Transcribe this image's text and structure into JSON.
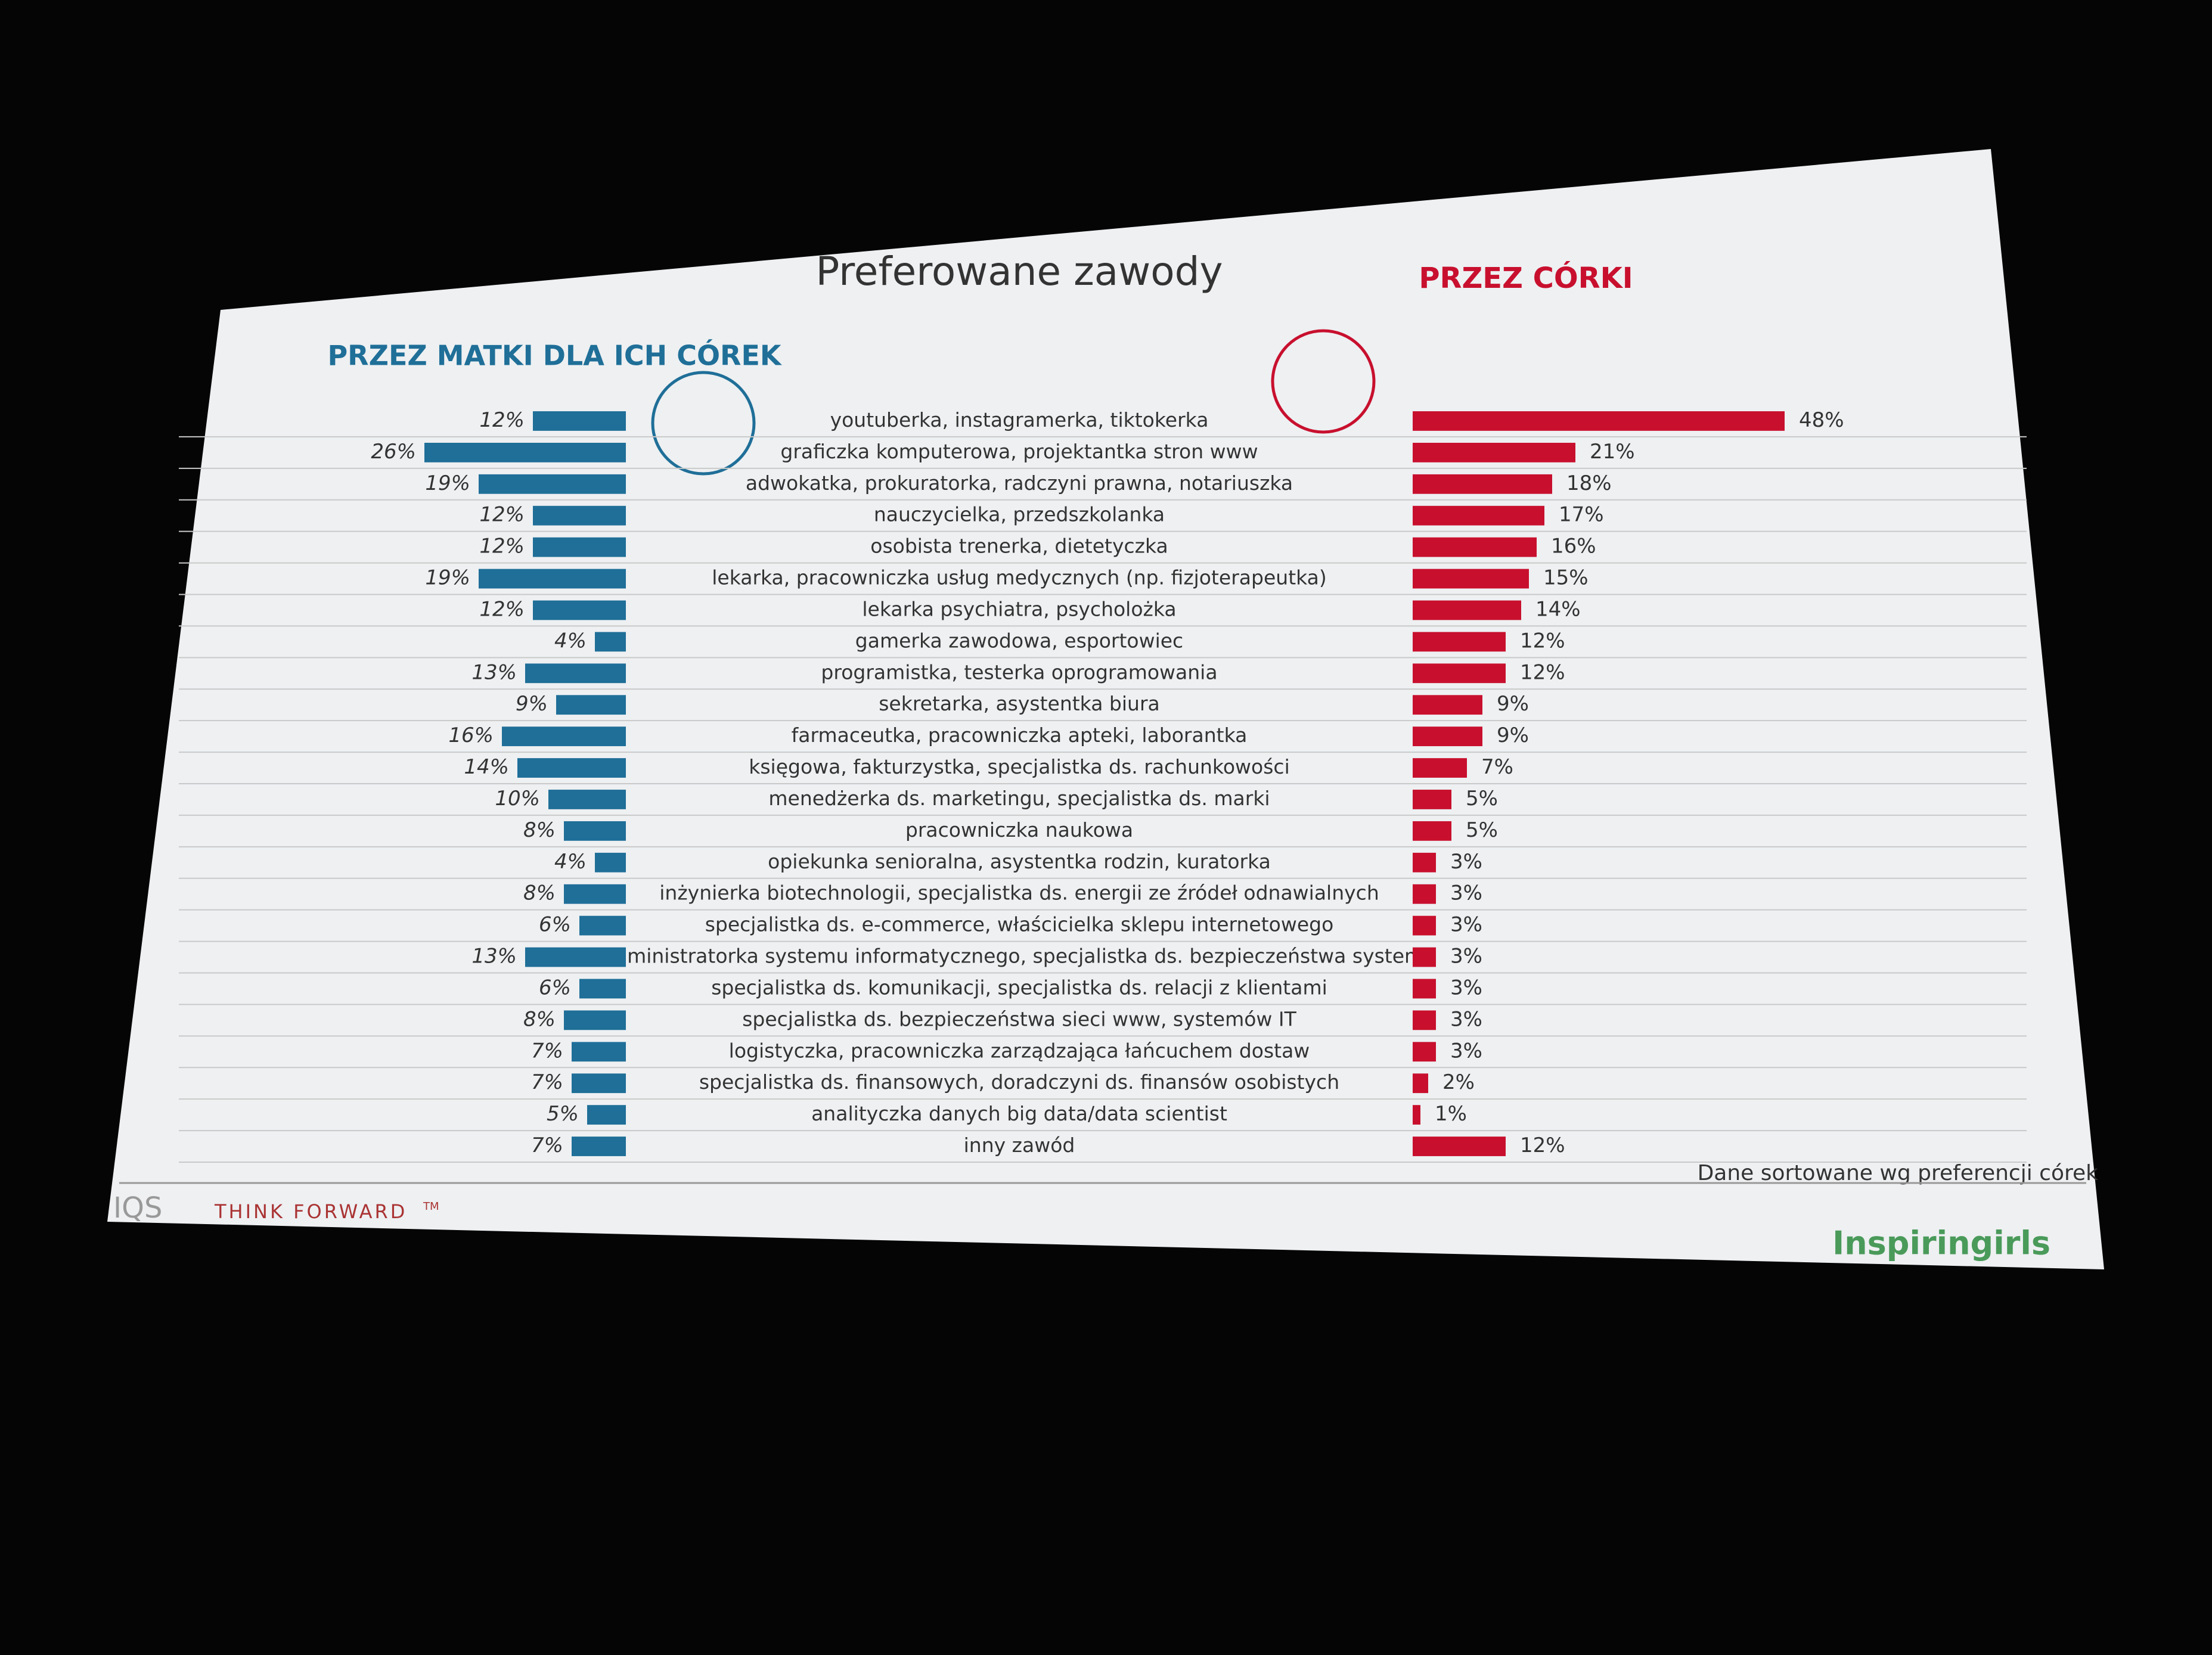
{
  "chart_data": {
    "type": "bar",
    "title": "Preferowane zawody",
    "left_heading": "PRZEZ MATKI DLA ICH CÓREK",
    "right_heading": "PRZEZ CÓRKI",
    "note": "Dane sortowane wg preferencji córek",
    "footer_left": "THINK FORWARD",
    "footer_tm": "TM",
    "footer_logo_left": "IQS",
    "footer_logo_right": "Inspiringirls",
    "categories": [
      "youtuberka, instagramerka, tiktokerka",
      "graficzka komputerowa, projektantka stron www",
      "adwokatka, prokuratorka, radczyni prawna, notariuszka",
      "nauczycielka, przedszkolanka",
      "osobista trenerka, dietetyczka",
      "lekarka, pracowniczka usług medycznych (np. fizjoterapeutka)",
      "lekarka psychiatra, psycholożka",
      "gamerka zawodowa, esportowiec",
      "programistka, testerka oprogramowania",
      "sekretarka, asystentka biura",
      "farmaceutka, pracowniczka apteki, laborantka",
      "księgowa, fakturzystka, specjalistka ds. rachunkowości",
      "menedżerka ds. marketingu, specjalistka ds. marki",
      "pracowniczka naukowa",
      "opiekunka senioralna, asystentka rodzin, kuratorka",
      "inżynierka biotechnologii, specjalistka ds. energii ze źródeł odnawialnych",
      "specjalistka ds. e-commerce, właścicielka sklepu internetowego",
      "administratorka systemu informatycznego, specjalistka ds. bezpieczeństwa systemu",
      "specjalistka ds. komunikacji, specjalistka ds. relacji z klientami",
      "specjalistka ds. bezpieczeństwa sieci www, systemów IT",
      "logistyczka, pracowniczka zarządzająca łańcuchem dostaw",
      "specjalistka ds. finansowych, doradczyni ds. finansów osobistych",
      "analityczka danych big data/data scientist",
      "inny zawód"
    ],
    "series": [
      {
        "name": "PRZEZ MATKI DLA ICH CÓREK",
        "color": "#1f6f98",
        "values": [
          12,
          26,
          19,
          12,
          12,
          19,
          12,
          4,
          13,
          9,
          16,
          14,
          10,
          8,
          4,
          8,
          6,
          13,
          6,
          8,
          7,
          7,
          5,
          7
        ],
        "value_labels": [
          "12%",
          "26%",
          "19%",
          "12%",
          "12%",
          "19%",
          "12%",
          "4%",
          "13%",
          "9%",
          "16%",
          "14%",
          "10%",
          "8%",
          "4%",
          "8%",
          "6%",
          "13%",
          "6%",
          "8%",
          "7%",
          "7%",
          "5%",
          "7%"
        ]
      },
      {
        "name": "PRZEZ CÓRKI",
        "color": "#c8102e",
        "values": [
          48,
          21,
          18,
          17,
          16,
          15,
          14,
          12,
          12,
          9,
          9,
          7,
          5,
          5,
          3,
          3,
          3,
          3,
          3,
          3,
          3,
          2,
          1,
          12
        ],
        "value_labels": [
          "48%",
          "21%",
          "18%",
          "17%",
          "16%",
          "15%",
          "14%",
          "12%",
          "12%",
          "9%",
          "9%",
          "7%",
          "5%",
          "5%",
          "3%",
          "3%",
          "3%",
          "3%",
          "3%",
          "3%",
          "3%",
          "2%",
          "1%",
          "12%"
        ]
      }
    ]
  }
}
